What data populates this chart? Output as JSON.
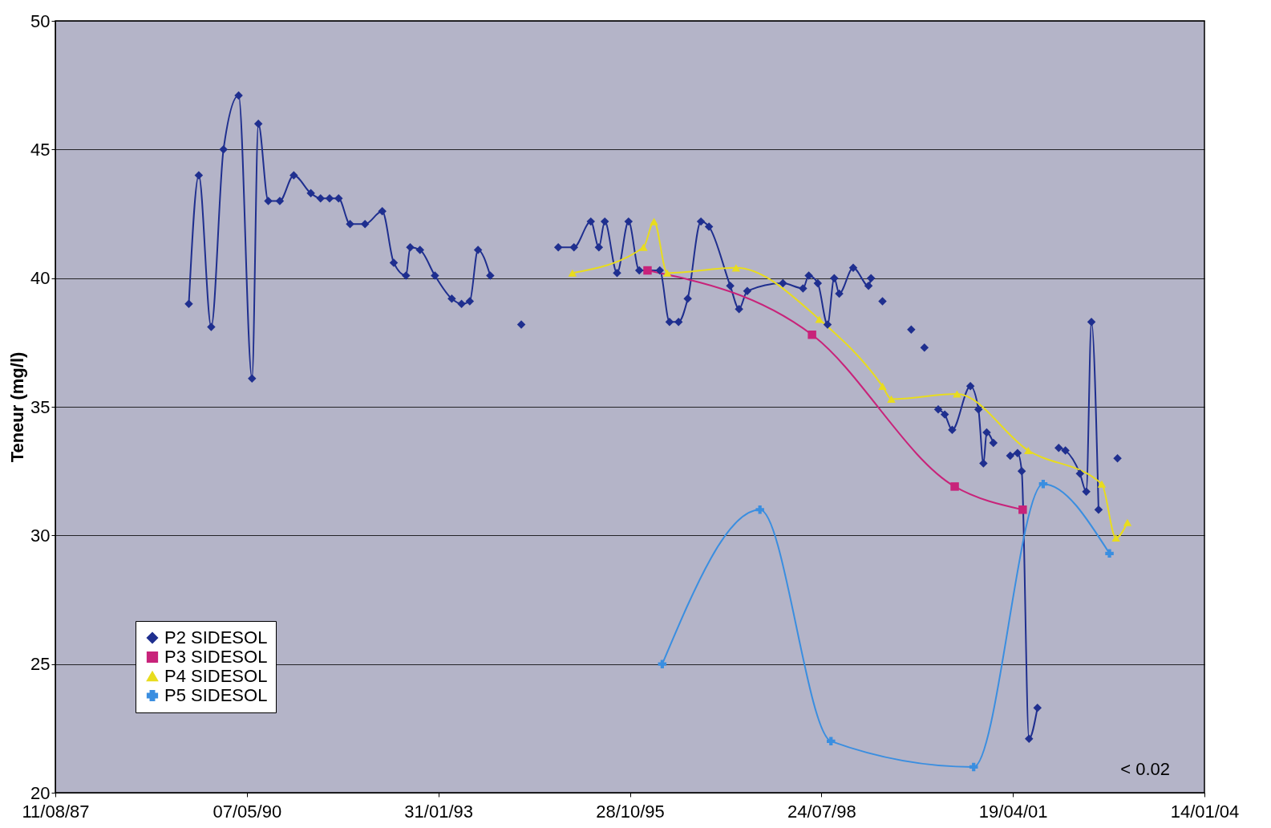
{
  "chart_data": {
    "type": "line",
    "ylabel": "Teneur (mg/l)",
    "xlim": [
      "1987-08-11",
      "2004-01-14"
    ],
    "xticks": [
      {
        "value": "1987-08-11",
        "label": "11/08/87"
      },
      {
        "value": "1990-05-07",
        "label": "07/05/90"
      },
      {
        "value": "1993-01-31",
        "label": "31/01/93"
      },
      {
        "value": "1995-10-28",
        "label": "28/10/95"
      },
      {
        "value": "1998-07-24",
        "label": "24/07/98"
      },
      {
        "value": "2001-04-19",
        "label": "19/04/01"
      },
      {
        "value": "2004-01-14",
        "label": "14/01/04"
      }
    ],
    "ylim": [
      20,
      50
    ],
    "yticks": [
      20,
      25,
      30,
      35,
      40,
      45,
      50
    ],
    "grid": "y",
    "legend": "bottom left",
    "annotations": [
      "< 0.02"
    ],
    "series": [
      {
        "name": "P2 SIDESOL",
        "color": "#1f2f8f",
        "marker": "diamond",
        "x": [
          "1989-07-08",
          "1989-08-29",
          "1989-11-02",
          "1990-01-05",
          "1990-03-25",
          "1990-06-03",
          "1990-07-06",
          "1990-08-27",
          "1990-10-26",
          "1991-01-07",
          "1991-04-06",
          "1991-05-27",
          "1991-07-13",
          "1991-08-29",
          "1991-10-28",
          "1992-01-14",
          "1992-04-13",
          "1992-06-12",
          "1992-08-15",
          "1992-09-06",
          "1992-10-27",
          "1993-01-13",
          "1993-04-11",
          "1993-06-01",
          "1993-07-14",
          "1993-08-26",
          "1993-10-29",
          "1994-01-19",
          "1994-04-09",
          "1994-07-12",
          "1994-10-19",
          "1995-01-09",
          "1995-04-07",
          "1995-05-19",
          "1995-06-19",
          "1995-08-22",
          "1995-10-21",
          "1995-12-16",
          "1996-04-01",
          "1996-05-22",
          "1996-07-08",
          "1996-08-25",
          "1996-11-02",
          "1996-12-14",
          "1997-04-04",
          "1997-05-20",
          "1997-07-02",
          "1998-01-04",
          "1998-04-19",
          "1998-05-19",
          "1998-07-05",
          "1998-08-25",
          "1998-09-29",
          "1998-10-25",
          "1999-01-06",
          "1999-03-27",
          "1999-04-09",
          "1999-05-08",
          "1999-06-08",
          "1999-09-24",
          "1999-11-05",
          "1999-12-09",
          "2000-01-13",
          "2000-02-16",
          "2000-03-25",
          "2000-04-28",
          "2000-06-06",
          "2000-09-09",
          "2000-10-21",
          "2000-11-16",
          "2000-12-03",
          "2001-01-07",
          "2001-02-19",
          "2001-04-05",
          "2001-05-13",
          "2001-06-04",
          "2001-07-12",
          "2001-08-25",
          "2001-10-19",
          "2001-12-14",
          "2002-01-18",
          "2002-04-04",
          "2002-05-07",
          "2002-06-03",
          "2002-07-10",
          "2002-08-27",
          "2002-10-17"
        ],
        "values": [
          39.0,
          44.0,
          38.1,
          45.0,
          47.1,
          36.1,
          46.0,
          43.0,
          43.0,
          44.0,
          43.3,
          43.1,
          43.1,
          43.1,
          42.1,
          42.1,
          42.6,
          40.6,
          40.1,
          41.2,
          41.1,
          40.1,
          39.2,
          39.0,
          39.1,
          41.1,
          40.1,
          null,
          38.2,
          null,
          41.2,
          41.2,
          42.2,
          41.2,
          42.2,
          40.2,
          42.2,
          40.3,
          40.3,
          38.3,
          38.3,
          39.2,
          42.2,
          42.0,
          39.7,
          38.8,
          39.5,
          39.8,
          39.6,
          40.1,
          39.8,
          38.2,
          40.0,
          39.4,
          40.4,
          39.7,
          40.0,
          null,
          39.1,
          null,
          38.0,
          null,
          37.3,
          null,
          34.9,
          34.7,
          34.1,
          35.8,
          34.9,
          32.8,
          34.0,
          33.6,
          null,
          33.1,
          33.2,
          32.5,
          22.1,
          23.3,
          null,
          33.4,
          33.3,
          32.4,
          31.7,
          38.3,
          31.0,
          null,
          33.0
        ]
      },
      {
        "name": "P3 SIDESOL",
        "color": "#c8237a",
        "marker": "square",
        "x": [
          "1996-01-28",
          "1998-06-05",
          "2000-06-19",
          "2001-06-09"
        ],
        "values": [
          40.3,
          37.8,
          31.9,
          31.0
        ]
      },
      {
        "name": "P4 SIDESOL",
        "color": "#e8dc1e",
        "marker": "triangle",
        "x": [
          "1995-01-01",
          "1996-01-07",
          "1996-03-02",
          "1996-05-10",
          "1997-05-04",
          "1998-07-13",
          "1999-06-08",
          "1999-07-24",
          "2000-07-01",
          "2001-07-08",
          "2002-07-27",
          "2002-10-09",
          "2002-12-08"
        ],
        "values": [
          40.2,
          41.2,
          42.2,
          40.2,
          40.4,
          38.4,
          35.8,
          35.3,
          35.5,
          33.3,
          32.0,
          29.9,
          30.5
        ]
      },
      {
        "name": "P5 SIDESOL",
        "color": "#3a8ee0",
        "marker": "cross",
        "x": [
          "1996-04-14",
          "1997-09-06",
          "1998-09-12",
          "2000-09-26",
          "2001-09-24",
          "2002-09-05"
        ],
        "values": [
          25.0,
          31.0,
          22.0,
          21.0,
          32.0,
          29.3
        ]
      }
    ]
  }
}
